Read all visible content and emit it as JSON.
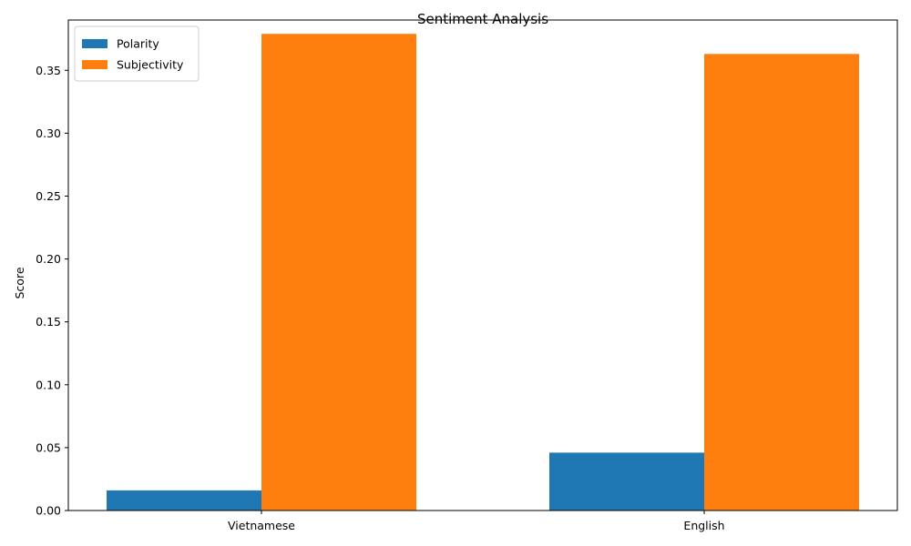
{
  "chart_data": {
    "type": "bar",
    "title": "Sentiment Analysis",
    "xlabel": "",
    "ylabel": "Score",
    "categories": [
      "Vietnamese",
      "English"
    ],
    "series": [
      {
        "name": "Polarity",
        "values": [
          0.016,
          0.046
        ],
        "color": "#1f77b4"
      },
      {
        "name": "Subjectivity",
        "values": [
          0.379,
          0.363
        ],
        "color": "#ff7f0e"
      }
    ],
    "ylim": [
      0,
      0.39
    ],
    "yticks": [
      "0.00",
      "0.05",
      "0.10",
      "0.15",
      "0.20",
      "0.25",
      "0.30",
      "0.35"
    ],
    "grid": false,
    "legend_position": "top-left"
  }
}
